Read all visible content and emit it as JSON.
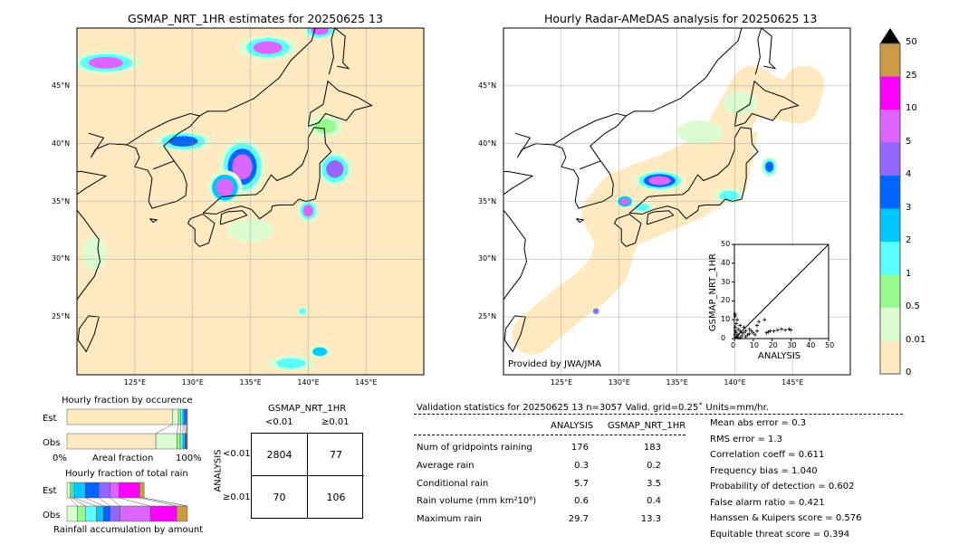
{
  "left_map": {
    "title": "GSMAP_NRT_1HR estimates for 20250625 13",
    "lon_ticks": [
      "125°E",
      "130°E",
      "135°E",
      "140°E",
      "145°E"
    ],
    "lat_ticks": [
      "45°N",
      "40°N",
      "35°N",
      "30°N",
      "25°N"
    ]
  },
  "right_map": {
    "title": "Hourly Radar-AMeDAS analysis for 20250625 13",
    "lon_ticks": [
      "125°E",
      "130°E",
      "135°E",
      "140°E",
      "145°E"
    ],
    "lat_ticks": [
      "45°N",
      "40°N",
      "35°N",
      "30°N",
      "25°N"
    ],
    "credit": "Provided by JWA/JMA"
  },
  "colorbar": {
    "labels": [
      "0",
      "0.01",
      "0.5",
      "1",
      "2",
      "3",
      "4",
      "5",
      "10",
      "25",
      "50"
    ],
    "colors": [
      "#fee9c0",
      "#dafcd0",
      "#96fa8c",
      "#5affff",
      "#00c8ff",
      "#0064ff",
      "#9664ff",
      "#dc64ff",
      "#ff00ff",
      "#cc9944"
    ],
    "extend_color": "#000000"
  },
  "scatter": {
    "xlabel": "ANALYSIS",
    "ylabel": "GSMAP_NRT_1HR",
    "ticks": [
      "0",
      "10",
      "20",
      "30",
      "40",
      "50"
    ],
    "xlim": [
      0,
      50
    ],
    "ylim": [
      0,
      50
    ],
    "points": [
      [
        16,
        10
      ],
      [
        17,
        3
      ],
      [
        18,
        3.5
      ],
      [
        19,
        4
      ],
      [
        21,
        4
      ],
      [
        23,
        4.5
      ],
      [
        25,
        5
      ],
      [
        27,
        4.5
      ],
      [
        29,
        5
      ],
      [
        30,
        4.5
      ],
      [
        13,
        9
      ],
      [
        12,
        7
      ],
      [
        0.3,
        13
      ],
      [
        0.5,
        12
      ],
      [
        1,
        8
      ],
      [
        3,
        7
      ],
      [
        5,
        6
      ],
      [
        8,
        5
      ],
      [
        10,
        3
      ],
      [
        2,
        2
      ],
      [
        1,
        1
      ],
      [
        4,
        3
      ],
      [
        6,
        1
      ],
      [
        3,
        0.5
      ],
      [
        0.5,
        4
      ],
      [
        2,
        5
      ],
      [
        7,
        2
      ],
      [
        9,
        4
      ],
      [
        11,
        2
      ],
      [
        5,
        3
      ],
      [
        1,
        3
      ],
      [
        0.5,
        6
      ],
      [
        2,
        0.5
      ],
      [
        4,
        1.5
      ],
      [
        6,
        4
      ],
      [
        8,
        2.5
      ],
      [
        0.2,
        2
      ],
      [
        1.5,
        10
      ],
      [
        3,
        4
      ],
      [
        12,
        4
      ]
    ]
  },
  "occurrence": {
    "title": "Hourly fraction by occurence",
    "est_label": "Est",
    "obs_label": "Obs",
    "xlabel": "Areal fraction",
    "x_left": "0%",
    "x_right": "100%",
    "est": [
      0.875,
      0.05,
      0.02,
      0.0175,
      0.0125,
      0.0125,
      0.0075,
      0.005
    ],
    "obs": [
      0.7375,
      0.175,
      0.0275,
      0.0225,
      0.0175,
      0.01,
      0.005,
      0.005
    ]
  },
  "total_rain": {
    "title": "Hourly fraction of total rain",
    "est_label": "Est",
    "obs_label": "Obs",
    "xlabel": "Rainfall accumulation by amount",
    "est": [
      0.025,
      0.015,
      0.0175,
      0.095,
      0.1125,
      0.0925,
      0.075,
      0.17,
      0.0375,
      0
    ],
    "obs": [
      0.085,
      0.0675,
      0.0925,
      0.0575,
      0.055,
      0.0825,
      0.2525,
      0.2175,
      0.09,
      0
    ]
  },
  "contingency": {
    "title": "GSMAP_NRT_1HR",
    "col_labels": [
      "<0.01",
      "≥0.01"
    ],
    "row_title": "ANALYSIS",
    "row_labels": [
      "<0.01",
      "≥0.01"
    ],
    "cells": [
      [
        "2804",
        "77"
      ],
      [
        "70",
        "106"
      ]
    ]
  },
  "stats": {
    "header": "Validation statistics for 20250625 13  n=3057 Valid. grid=0.25˚ Units=mm/hr.",
    "col_analysis": "ANALYSIS",
    "col_gsmap": "GSMAP_NRT_1HR",
    "rows": [
      {
        "label": "Num of gridpoints raining",
        "analysis": "176",
        "gsmap": "183"
      },
      {
        "label": "Average rain",
        "analysis": "0.3",
        "gsmap": "0.2"
      },
      {
        "label": "Conditional rain",
        "analysis": "5.7",
        "gsmap": "3.5"
      },
      {
        "label": "Rain volume (mm km²10⁶)",
        "analysis": "0.6",
        "gsmap": "0.4"
      },
      {
        "label": "Maximum rain",
        "analysis": "29.7",
        "gsmap": "13.3"
      }
    ],
    "scores": [
      "Mean abs error =    0.3",
      "RMS error =    1.3",
      "Correlation coeff =  0.611",
      "Frequency bias =  1.040",
      "Probability of detection =  0.602",
      "False alarm ratio =  0.421",
      "Hanssen & Kuipers score =  0.576",
      "Equitable threat score =  0.394"
    ]
  }
}
